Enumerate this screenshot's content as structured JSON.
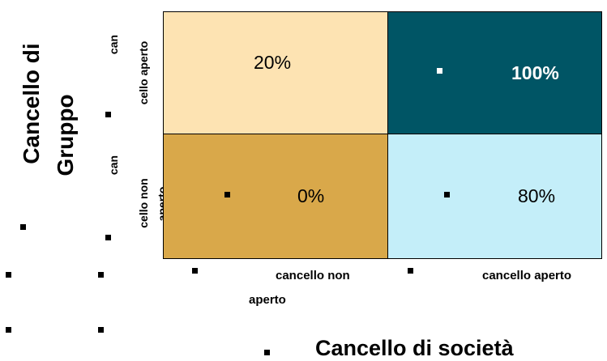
{
  "vertical_axis": {
    "title_line1": "Cancello di",
    "title_line2": "Gruppo",
    "top_label_line1": "can",
    "top_label_line2": "cello aperto",
    "bottom_label_line1": "can",
    "bottom_label_line2": "cello non",
    "bottom_label_line3": "aperto"
  },
  "horizontal_axis": {
    "title": "Cancello di società",
    "left_label_line1": "cancello non",
    "left_label_line2": "aperto",
    "right_label": "cancello aperto"
  },
  "matrix": {
    "top_left": "20%",
    "top_right": "100%",
    "bottom_left": "0%",
    "bottom_right": "80%"
  },
  "colors": {
    "top_left": "#fde3b2",
    "top_right": "#005565",
    "bottom_left": "#d9a84a",
    "bottom_right": "#c4eef9"
  }
}
